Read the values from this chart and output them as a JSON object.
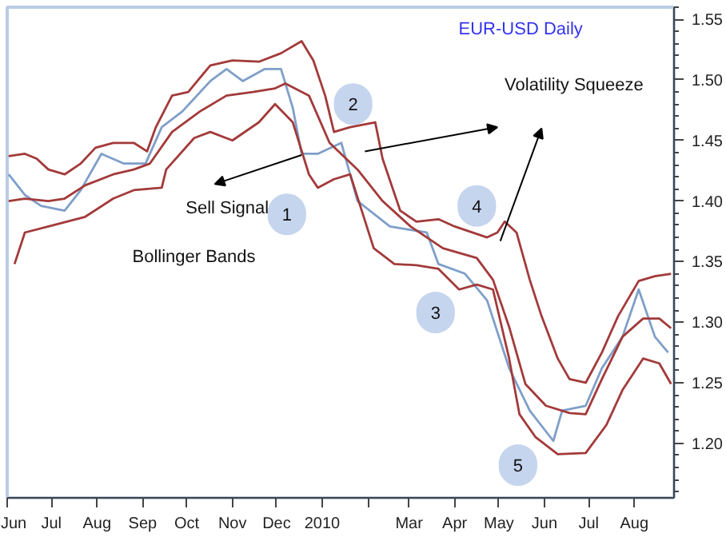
{
  "chart_data": {
    "type": "line",
    "title": "EUR-USD Daily",
    "xlim": [
      "2009-06-01",
      "2010-08-28"
    ],
    "ylim": [
      1.155,
      1.56
    ],
    "xticks": [
      {
        "value": "2009-06-01",
        "label": "Jun"
      },
      {
        "value": "2009-07-01",
        "label": "Jul"
      },
      {
        "value": "2009-08-01",
        "label": "Aug"
      },
      {
        "value": "2009-09-01",
        "label": "Sep"
      },
      {
        "value": "2009-10-01",
        "label": "Oct"
      },
      {
        "value": "2009-11-01",
        "label": "Nov"
      },
      {
        "value": "2009-12-01",
        "label": "Dec"
      },
      {
        "value": "2010-01-01",
        "label": "2010"
      },
      {
        "value": "2010-02-01",
        "label": null
      },
      {
        "value": "2010-03-01",
        "label": "Mar"
      },
      {
        "value": "2010-04-01",
        "label": "Apr"
      },
      {
        "value": "2010-05-01",
        "label": "May"
      },
      {
        "value": "2010-06-01",
        "label": "Jun"
      },
      {
        "value": "2010-07-01",
        "label": "Jul"
      },
      {
        "value": "2010-08-01",
        "label": "Aug"
      }
    ],
    "yticks": [
      {
        "value": 1.2,
        "label": "1.20"
      },
      1.25,
      {
        "value": 1.3,
        "label": "1.30"
      },
      1.35,
      {
        "value": 1.4,
        "label": "1.40"
      },
      1.45,
      {
        "value": 1.5,
        "label": "1.50"
      },
      1.55
    ],
    "grid": false,
    "marker": "none",
    "line_style": "solid",
    "series": [
      {
        "color": "#7f9fc9",
        "x": [
          "2009-06-02",
          "2009-06-13",
          "2009-06-24",
          "2009-07-10",
          "2009-07-21",
          "2009-08-04",
          "2009-08-19",
          "2009-09-03",
          "2009-09-14",
          "2009-09-28",
          "2009-10-17",
          "2009-10-28",
          "2009-11-08",
          "2009-11-23",
          "2009-12-04",
          "2009-12-12",
          "2009-12-18",
          "2009-12-29",
          "2010-01-14",
          "2010-01-25",
          "2010-02-16",
          "2010-03-13",
          "2010-03-21",
          "2010-04-08",
          "2010-04-23",
          "2010-05-08",
          "2010-05-22",
          "2010-06-07",
          "2010-06-13",
          "2010-06-29",
          "2010-07-10",
          "2010-07-24",
          "2010-08-04",
          "2010-08-15",
          "2010-08-24"
        ],
        "values": [
          1.422,
          1.405,
          1.396,
          1.392,
          1.409,
          1.439,
          1.431,
          1.431,
          1.461,
          1.474,
          1.499,
          1.509,
          1.499,
          1.509,
          1.509,
          1.477,
          1.439,
          1.439,
          1.448,
          1.4,
          1.379,
          1.374,
          1.348,
          1.34,
          1.318,
          1.262,
          1.227,
          1.202,
          1.227,
          1.231,
          1.262,
          1.288,
          1.327,
          1.288,
          1.275
        ]
      },
      {
        "color": "#a33a3a",
        "x": [
          "2009-06-02",
          "2009-06-13",
          "2009-06-21",
          "2009-06-29",
          "2009-07-10",
          "2009-07-21",
          "2009-07-31",
          "2009-08-12",
          "2009-08-26",
          "2009-09-04",
          "2009-09-10",
          "2009-09-21",
          "2009-10-02",
          "2009-10-17",
          "2009-11-01",
          "2009-11-19",
          "2009-12-04",
          "2009-12-18",
          "2009-12-26",
          "2010-01-03",
          "2010-01-09",
          "2010-01-20",
          "2010-02-06",
          "2010-02-11",
          "2010-02-23",
          "2010-03-06",
          "2010-03-21",
          "2010-04-01",
          "2010-04-23",
          "2010-04-30",
          "2010-05-05",
          "2010-05-13",
          "2010-05-22",
          "2010-05-30",
          "2010-06-10",
          "2010-06-18",
          "2010-06-29",
          "2010-07-10",
          "2010-07-21",
          "2010-08-04",
          "2010-08-15",
          "2010-08-26"
        ],
        "values": [
          1.437,
          1.439,
          1.435,
          1.426,
          1.422,
          1.431,
          1.444,
          1.448,
          1.448,
          1.441,
          1.461,
          1.487,
          1.49,
          1.512,
          1.516,
          1.515,
          1.522,
          1.532,
          1.516,
          1.487,
          1.457,
          1.461,
          1.465,
          1.435,
          1.392,
          1.383,
          1.385,
          1.379,
          1.37,
          1.374,
          1.383,
          1.374,
          1.335,
          1.305,
          1.27,
          1.253,
          1.25,
          1.275,
          1.305,
          1.334,
          1.338,
          1.34
        ]
      },
      {
        "color": "#a33a3a",
        "x": [
          "2009-06-02",
          "2009-06-13",
          "2009-06-29",
          "2009-07-10",
          "2009-07-24",
          "2009-08-12",
          "2009-08-26",
          "2009-09-06",
          "2009-09-21",
          "2009-10-10",
          "2009-10-28",
          "2009-11-15",
          "2009-11-30",
          "2009-12-07",
          "2009-12-23",
          "2010-01-06",
          "2010-01-25",
          "2010-02-11",
          "2010-03-02",
          "2010-03-24",
          "2010-04-16",
          "2010-04-27",
          "2010-05-08",
          "2010-05-19",
          "2010-06-02",
          "2010-06-18",
          "2010-06-29",
          "2010-07-10",
          "2010-07-24",
          "2010-08-07",
          "2010-08-18",
          "2010-08-26"
        ],
        "values": [
          1.4,
          1.402,
          1.4,
          1.402,
          1.413,
          1.422,
          1.426,
          1.431,
          1.457,
          1.474,
          1.487,
          1.49,
          1.493,
          1.497,
          1.487,
          1.448,
          1.426,
          1.4,
          1.379,
          1.361,
          1.353,
          1.335,
          1.296,
          1.249,
          1.231,
          1.225,
          1.224,
          1.253,
          1.288,
          1.303,
          1.303,
          1.295
        ]
      },
      {
        "color": "#a33a3a",
        "x": [
          "2009-06-06",
          "2009-06-13",
          "2009-06-29",
          "2009-07-24",
          "2009-08-12",
          "2009-08-26",
          "2009-09-14",
          "2009-09-17",
          "2009-10-06",
          "2009-10-17",
          "2009-11-01",
          "2009-11-19",
          "2009-11-30",
          "2009-12-12",
          "2009-12-23",
          "2009-12-29",
          "2010-01-09",
          "2010-01-20",
          "2010-02-05",
          "2010-02-19",
          "2010-03-06",
          "2010-03-21",
          "2010-04-04",
          "2010-04-16",
          "2010-04-27",
          "2010-05-08",
          "2010-05-15",
          "2010-05-26",
          "2010-06-10",
          "2010-06-29",
          "2010-07-13",
          "2010-07-24",
          "2010-08-07",
          "2010-08-18",
          "2010-08-26"
        ],
        "values": [
          1.348,
          1.374,
          1.379,
          1.387,
          1.402,
          1.409,
          1.411,
          1.426,
          1.452,
          1.457,
          1.45,
          1.465,
          1.48,
          1.465,
          1.422,
          1.411,
          1.418,
          1.422,
          1.361,
          1.348,
          1.347,
          1.344,
          1.327,
          1.331,
          1.327,
          1.27,
          1.224,
          1.205,
          1.191,
          1.192,
          1.215,
          1.244,
          1.27,
          1.266,
          1.249
        ]
      }
    ],
    "annotations": [
      {
        "text": "1",
        "x": "2009-12-08",
        "y": 1.389
      },
      {
        "text": "2",
        "x": "2010-01-22",
        "y": 1.48
      },
      {
        "text": "3",
        "x": "2010-03-19",
        "y": 1.308
      },
      {
        "text": "4",
        "x": "2010-04-16",
        "y": 1.396
      },
      {
        "text": "5",
        "x": "2010-05-14",
        "y": 1.182
      },
      "Sell Signal",
      "Volatility Squeeze",
      "Bollinger Bands"
    ]
  }
}
